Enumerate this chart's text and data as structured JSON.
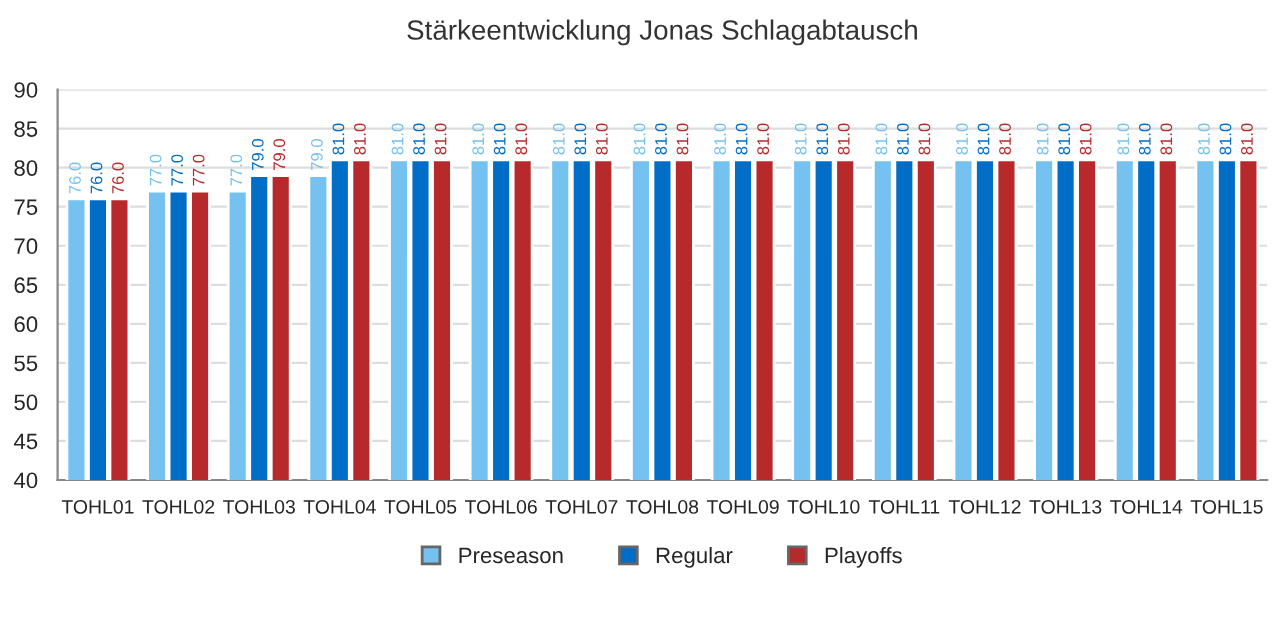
{
  "chart_data": {
    "type": "bar",
    "title": "Stärkeentwicklung Jonas Schlagabtausch",
    "categories": [
      "TOHL01",
      "TOHL02",
      "TOHL03",
      "TOHL04",
      "TOHL05",
      "TOHL06",
      "TOHL07",
      "TOHL08",
      "TOHL09",
      "TOHL10",
      "TOHL11",
      "TOHL12",
      "TOHL13",
      "TOHL14",
      "TOHL15"
    ],
    "series": [
      {
        "name": "Preseason",
        "color": "#75c1ef",
        "values": [
          76,
          77,
          77,
          79,
          81,
          81,
          81,
          81,
          81,
          81,
          81,
          81,
          81,
          81,
          81
        ],
        "value_labels": [
          "76.0",
          "77.0",
          "77.0",
          "79.0",
          "81.0",
          "81.0",
          "81.0",
          "81.0",
          "81.0",
          "81.0",
          "81.0",
          "81.0",
          "81.0",
          "81.0",
          "81.0"
        ]
      },
      {
        "name": "Regular",
        "color": "#006ec6",
        "values": [
          76,
          77,
          79,
          81,
          81,
          81,
          81,
          81,
          81,
          81,
          81,
          81,
          81,
          81,
          81
        ],
        "value_labels": [
          "76.0",
          "77.0",
          "79.0",
          "81.0",
          "81.0",
          "81.0",
          "81.0",
          "81.0",
          "81.0",
          "81.0",
          "81.0",
          "81.0",
          "81.0",
          "81.0",
          "81.0"
        ]
      },
      {
        "name": "Playoffs",
        "color": "#b8292b",
        "values": [
          76,
          77,
          79,
          81,
          81,
          81,
          81,
          81,
          81,
          81,
          81,
          81,
          81,
          81,
          81
        ],
        "value_labels": [
          "76.0",
          "77.0",
          "79.0",
          "81.0",
          "81.0",
          "81.0",
          "81.0",
          "81.0",
          "81.0",
          "81.0",
          "81.0",
          "81.0",
          "81.0",
          "81.0",
          "81.0"
        ]
      }
    ],
    "ylim": [
      40,
      90
    ],
    "yticks": [
      40,
      45,
      50,
      55,
      60,
      65,
      70,
      75,
      80,
      85,
      90
    ],
    "grid": "y",
    "legend": "bottom"
  }
}
